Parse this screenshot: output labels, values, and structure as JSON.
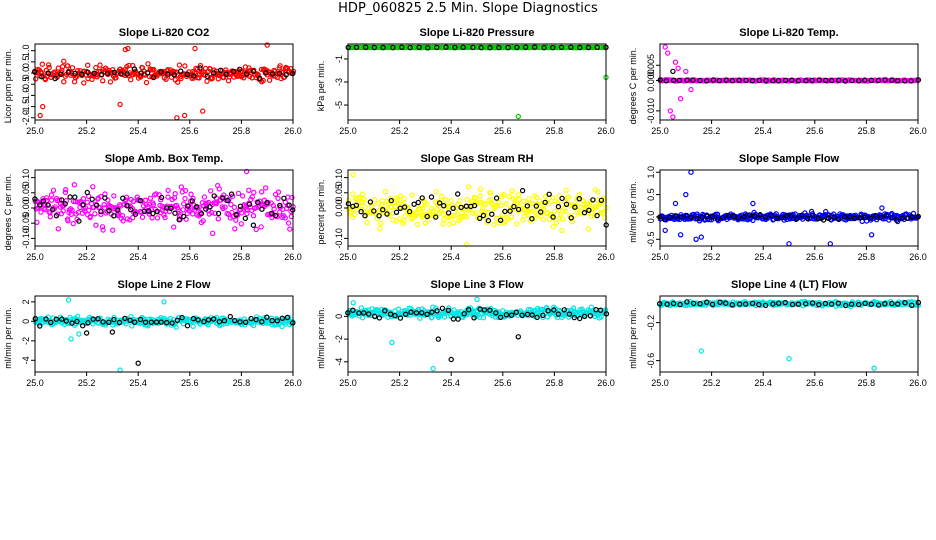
{
  "page_title": "HDP_060825  2.5 Min. Slope Diagnostics",
  "chart_data": [
    {
      "type": "scatter",
      "title": "Slope Li-820 CO2",
      "ylabel": "Licor ppm per min.",
      "xlim": [
        25.0,
        26.0
      ],
      "ylim": [
        -2.1,
        1.3
      ],
      "xticks": [
        "25.0",
        "25.2",
        "25.4",
        "25.6",
        "25.8",
        "26.0"
      ],
      "yticks": [
        "-2.0",
        "-1.5",
        "-1.0",
        "-0.5",
        "0.0",
        "0.5",
        "1.0"
      ],
      "series": [
        {
          "name": "main",
          "color": "#ff0000",
          "center": 0.0,
          "spread": 0.35,
          "n": 300,
          "outliers": [
            [
              25.02,
              -1.9
            ],
            [
              25.03,
              -1.5
            ],
            [
              25.33,
              -1.4
            ],
            [
              25.35,
              1.05
            ],
            [
              25.36,
              1.1
            ],
            [
              25.55,
              -2.0
            ],
            [
              25.58,
              -1.9
            ],
            [
              25.62,
              1.1
            ],
            [
              25.65,
              -1.7
            ],
            [
              25.9,
              1.25
            ]
          ]
        },
        {
          "name": "ref",
          "color": "#000000",
          "center": 0.0,
          "spread": 0.2,
          "n": 40,
          "outliers": []
        }
      ]
    },
    {
      "type": "scatter",
      "title": "Slope Li-820 Pressure",
      "ylabel": "kPa per min.",
      "xlim": [
        25.0,
        26.0
      ],
      "ylim": [
        -6.3,
        0.3
      ],
      "xticks": [
        "25.0",
        "25.2",
        "25.4",
        "25.6",
        "25.8",
        "26.0"
      ],
      "yticks": [
        "-5",
        "-3",
        "-1"
      ],
      "series": [
        {
          "name": "main",
          "color": "#00cc00",
          "center": 0.0,
          "spread": 0.02,
          "n": 160,
          "outliers": [
            [
              25.66,
              -6.0
            ],
            [
              26.0,
              -2.6
            ]
          ]
        },
        {
          "name": "ref",
          "color": "#000000",
          "center": 0.0,
          "spread": 0.02,
          "n": 30,
          "outliers": []
        }
      ]
    },
    {
      "type": "scatter",
      "title": "Slope Li-820 Temp.",
      "ylabel": "degrees C per min.",
      "xlim": [
        25.0,
        26.0
      ],
      "ylim": [
        -0.013,
        0.012
      ],
      "xticks": [
        "25.0",
        "25.2",
        "25.4",
        "25.6",
        "25.8",
        "26.0"
      ],
      "yticks": [
        "-0.010",
        "0.000",
        "0.005"
      ],
      "series": [
        {
          "name": "main",
          "color": "#ff00ff",
          "center": 0.0,
          "spread": 0.0002,
          "n": 220,
          "outliers": [
            [
              25.02,
              0.011
            ],
            [
              25.03,
              0.009
            ],
            [
              25.04,
              -0.01
            ],
            [
              25.05,
              -0.012
            ],
            [
              25.06,
              0.006
            ],
            [
              25.07,
              0.004
            ],
            [
              25.08,
              -0.006
            ],
            [
              25.1,
              0.003
            ],
            [
              25.12,
              -0.003
            ]
          ]
        },
        {
          "name": "ref",
          "color": "#000000",
          "center": 0.0,
          "spread": 0.0002,
          "n": 40,
          "outliers": [
            [
              25.05,
              0.003
            ]
          ]
        }
      ]
    },
    {
      "type": "scatter",
      "title": "Slope Amb. Box Temp.",
      "ylabel": "degrees C per min.",
      "xlim": [
        25.0,
        26.0
      ],
      "ylim": [
        -0.125,
        0.125
      ],
      "xticks": [
        "25.0",
        "25.2",
        "25.4",
        "25.6",
        "25.8",
        "26.0"
      ],
      "yticks": [
        "-0.10",
        "-0.05",
        "0.00",
        "0.05",
        "0.10"
      ],
      "series": [
        {
          "name": "main",
          "color": "#ff00ff",
          "center": 0.0,
          "spread": 0.055,
          "n": 320,
          "outliers": [
            [
              25.82,
              0.12
            ]
          ]
        },
        {
          "name": "ref",
          "color": "#000000",
          "center": 0.0,
          "spread": 0.05,
          "n": 60,
          "outliers": []
        }
      ]
    },
    {
      "type": "scatter",
      "title": "Slope Gas Stream RH",
      "ylabel": "percent per min.",
      "xlim": [
        25.0,
        26.0
      ],
      "ylim": [
        -0.125,
        0.125
      ],
      "xticks": [
        "25.0",
        "25.2",
        "25.4",
        "25.6",
        "25.8",
        "26.0"
      ],
      "yticks": [
        "-0.10",
        "0.00",
        "0.05",
        "0.10"
      ],
      "series": [
        {
          "name": "main",
          "color": "#ffff00",
          "center": 0.0,
          "spread": 0.055,
          "n": 320,
          "outliers": [
            [
              25.02,
              0.11
            ],
            [
              25.46,
              -0.12
            ]
          ]
        },
        {
          "name": "ref",
          "color": "#000000",
          "center": 0.0,
          "spread": 0.05,
          "n": 60,
          "outliers": []
        }
      ]
    },
    {
      "type": "scatter",
      "title": "Slope Sample Flow",
      "ylabel": "ml/min per min.",
      "xlim": [
        25.0,
        26.0
      ],
      "ylim": [
        -0.65,
        1.05
      ],
      "xticks": [
        "25.0",
        "25.2",
        "25.4",
        "25.6",
        "25.8",
        "26.0"
      ],
      "yticks": [
        "-0.5",
        "0.0",
        "0.5",
        "1.0"
      ],
      "series": [
        {
          "name": "main",
          "color": "#0000ff",
          "center": 0.0,
          "spread": 0.08,
          "n": 320,
          "outliers": [
            [
              25.12,
              1.0
            ],
            [
              25.1,
              0.5
            ],
            [
              25.14,
              -0.5
            ],
            [
              25.16,
              -0.45
            ],
            [
              25.06,
              0.3
            ],
            [
              25.08,
              -0.4
            ],
            [
              25.36,
              0.3
            ],
            [
              25.5,
              -0.6
            ],
            [
              25.66,
              -0.6
            ],
            [
              25.82,
              -0.4
            ],
            [
              25.86,
              0.2
            ],
            [
              25.02,
              -0.3
            ]
          ]
        },
        {
          "name": "ref",
          "color": "#000000",
          "center": 0.0,
          "spread": 0.07,
          "n": 50,
          "outliers": []
        }
      ]
    },
    {
      "type": "scatter",
      "title": "Slope Line 2 Flow",
      "ylabel": "ml/min per min.",
      "xlim": [
        25.0,
        26.0
      ],
      "ylim": [
        -5.2,
        2.6
      ],
      "xticks": [
        "25.0",
        "25.2",
        "25.4",
        "25.6",
        "25.8",
        "26.0"
      ],
      "yticks": [
        "-4",
        "-2",
        "0",
        "2"
      ],
      "series": [
        {
          "name": "main",
          "color": "#00e5e5",
          "center": 0.0,
          "spread": 0.4,
          "n": 320,
          "outliers": [
            [
              25.13,
              2.2
            ],
            [
              25.14,
              -1.8
            ],
            [
              25.33,
              -5.0
            ],
            [
              25.17,
              -1.3
            ],
            [
              25.5,
              2.0
            ]
          ]
        },
        {
          "name": "ref",
          "color": "#000000",
          "center": 0.0,
          "spread": 0.5,
          "n": 50,
          "outliers": [
            [
              25.4,
              -4.3
            ],
            [
              25.3,
              -1.1
            ],
            [
              25.2,
              -1.2
            ]
          ]
        }
      ]
    },
    {
      "type": "scatter",
      "title": "Slope Line 3 Flow",
      "ylabel": "ml/min per min.",
      "xlim": [
        25.0,
        26.0
      ],
      "ylim": [
        -4.9,
        1.8
      ],
      "xticks": [
        "25.0",
        "25.2",
        "25.4",
        "25.6",
        "25.8",
        "26.0"
      ],
      "yticks": [
        "-4",
        "-2",
        "0"
      ],
      "series": [
        {
          "name": "main",
          "color": "#00e5e5",
          "center": 0.3,
          "spread": 0.4,
          "n": 320,
          "outliers": [
            [
              25.33,
              -4.6
            ],
            [
              25.17,
              -2.3
            ],
            [
              25.5,
              1.5
            ],
            [
              25.02,
              1.2
            ]
          ]
        },
        {
          "name": "ref",
          "color": "#000000",
          "center": 0.2,
          "spread": 0.5,
          "n": 50,
          "outliers": [
            [
              25.4,
              -3.8
            ],
            [
              25.35,
              -2.0
            ],
            [
              25.66,
              -1.8
            ]
          ]
        }
      ]
    },
    {
      "type": "scatter",
      "title": "Slope Line 4 (LT) Flow",
      "ylabel": "ml/min per min.",
      "xlim": [
        25.0,
        26.0
      ],
      "ylim": [
        -0.72,
        0.08
      ],
      "xticks": [
        "25.0",
        "25.2",
        "25.4",
        "25.6",
        "25.8",
        "26.0"
      ],
      "yticks": [
        "-0.6",
        "-0.2"
      ],
      "series": [
        {
          "name": "main",
          "color": "#00e5e5",
          "center": 0.0,
          "spread": 0.02,
          "n": 260,
          "outliers": [
            [
              25.16,
              -0.5
            ],
            [
              25.5,
              -0.58
            ],
            [
              25.83,
              -0.68
            ]
          ]
        },
        {
          "name": "ref",
          "color": "#000000",
          "center": 0.0,
          "spread": 0.02,
          "n": 40,
          "outliers": []
        }
      ]
    }
  ]
}
